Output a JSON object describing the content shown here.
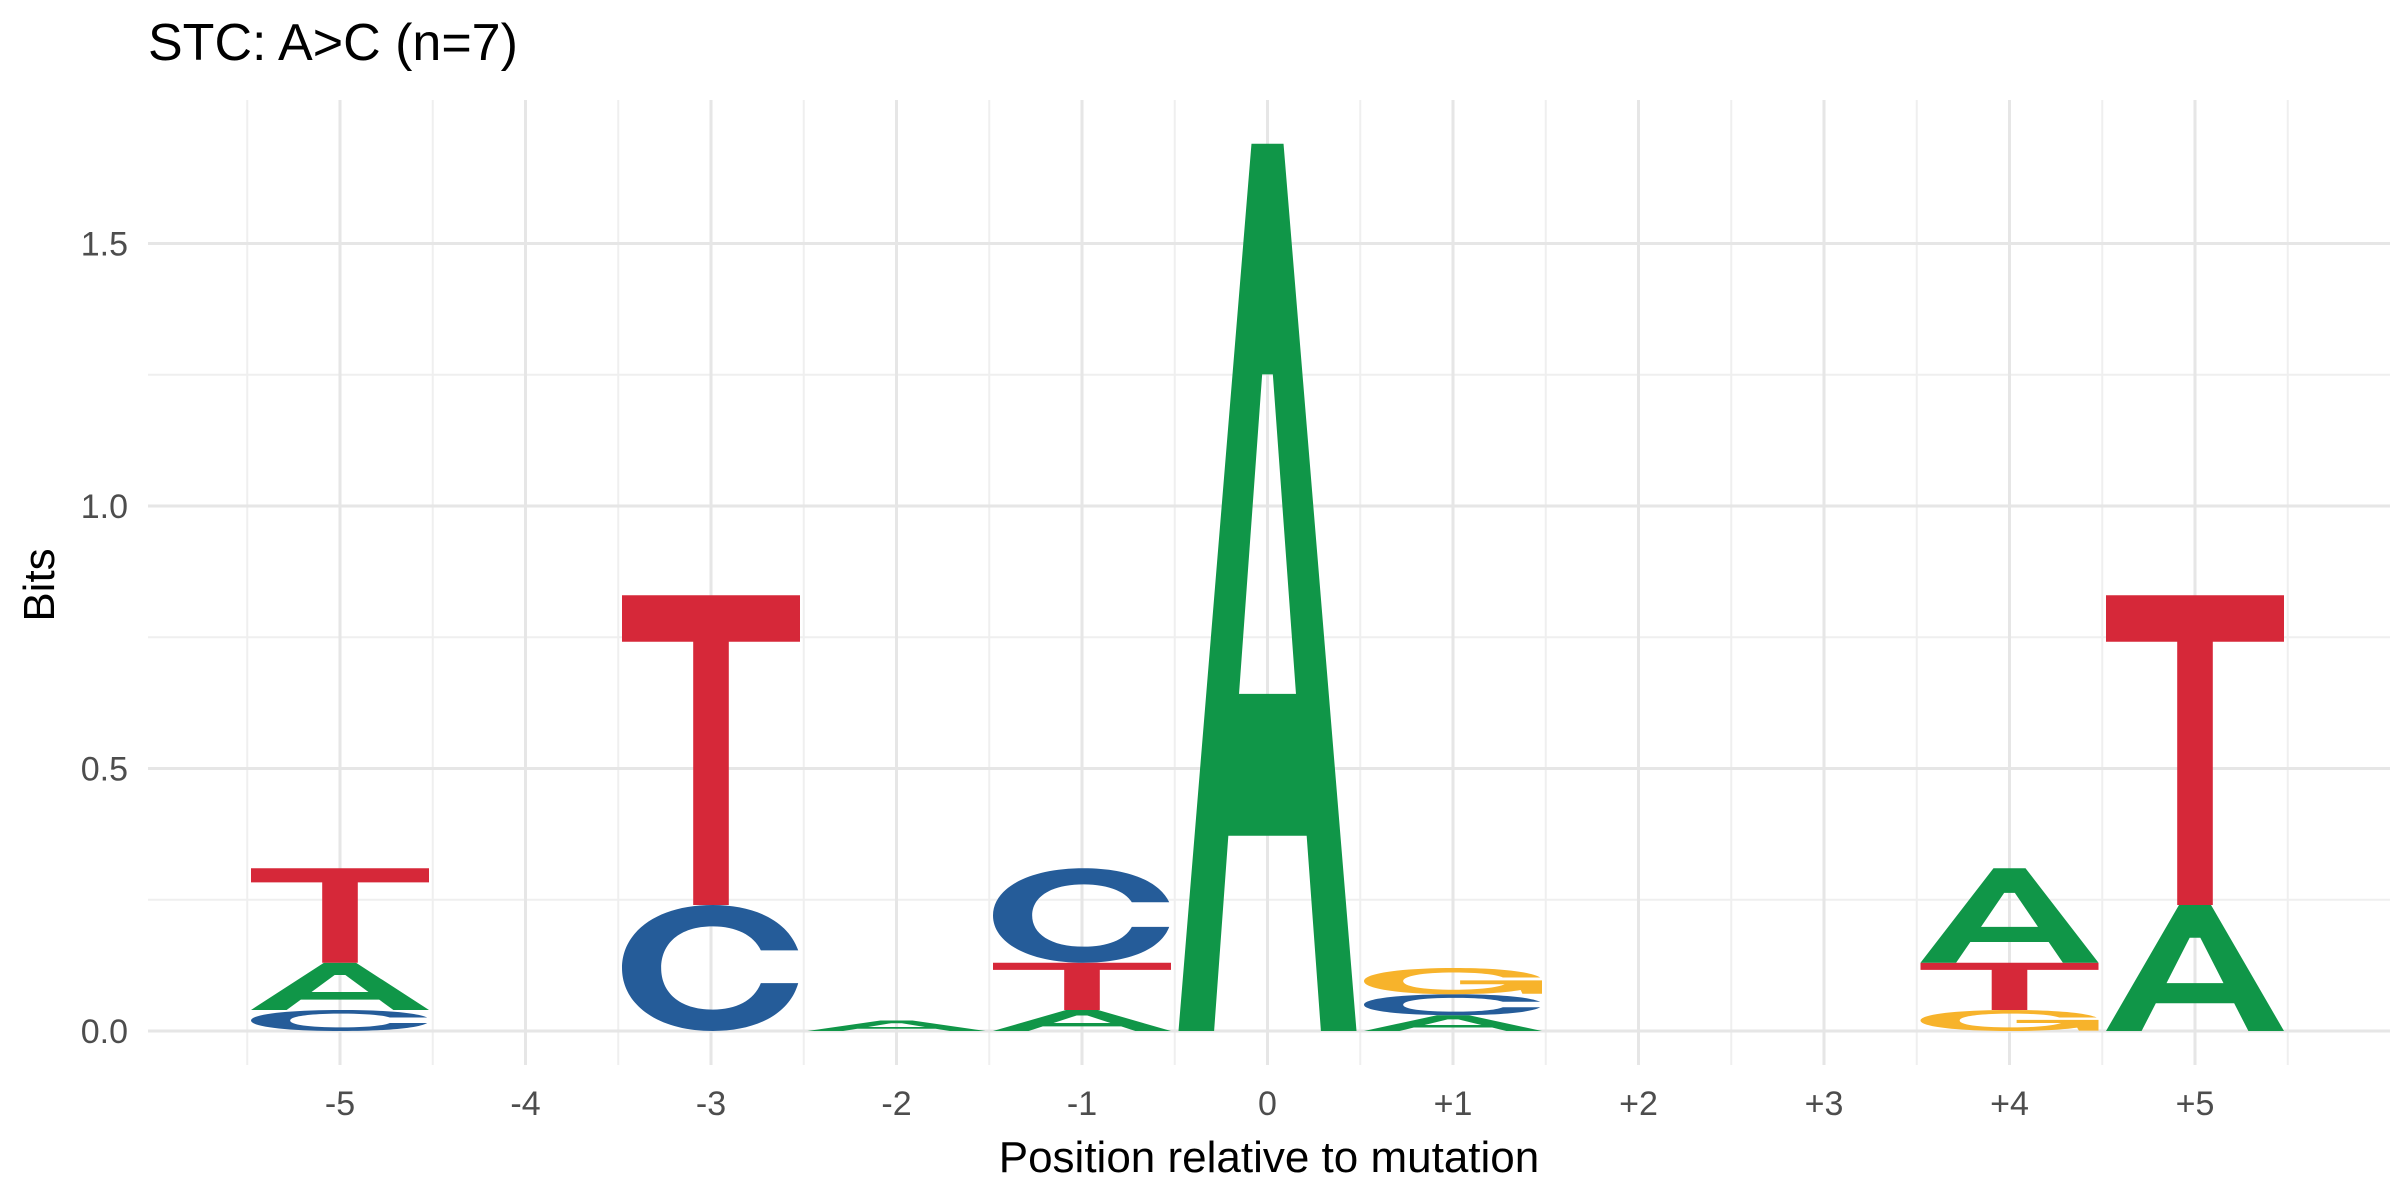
{
  "chart_data": {
    "type": "sequence-logo",
    "title": "STC: A>C (n=7)",
    "xlabel": "Position relative to mutation",
    "ylabel": "Bits",
    "ylim": [
      -0.08,
      1.75
    ],
    "yticks": [
      {
        "value": 0,
        "label": "0.0"
      },
      {
        "value": 0.5,
        "label": "0.5"
      },
      {
        "value": 1,
        "label": "1.0"
      },
      {
        "value": 1.5,
        "label": "1.5"
      }
    ],
    "grid": true,
    "colors": {
      "A": "#109648",
      "C": "#255C99",
      "G": "#F7B32B",
      "T": "#D62839"
    },
    "positions": [
      {
        "label": "-5",
        "letters": [
          {
            "base": "C",
            "bits": 0.04
          },
          {
            "base": "A",
            "bits": 0.09
          },
          {
            "base": "T",
            "bits": 0.18
          }
        ]
      },
      {
        "label": "-4",
        "letters": []
      },
      {
        "label": "-3",
        "letters": [
          {
            "base": "C",
            "bits": 0.24
          },
          {
            "base": "T",
            "bits": 0.59
          }
        ]
      },
      {
        "label": "-2",
        "letters": [
          {
            "base": "A",
            "bits": 0.02
          }
        ]
      },
      {
        "label": "-1",
        "letters": [
          {
            "base": "A",
            "bits": 0.04
          },
          {
            "base": "T",
            "bits": 0.09
          },
          {
            "base": "C",
            "bits": 0.18
          }
        ]
      },
      {
        "label": "0",
        "letters": [
          {
            "base": "A",
            "bits": 1.69
          }
        ]
      },
      {
        "label": "+1",
        "letters": [
          {
            "base": "A",
            "bits": 0.03
          },
          {
            "base": "C",
            "bits": 0.04
          },
          {
            "base": "G",
            "bits": 0.05
          }
        ]
      },
      {
        "label": "+2",
        "letters": []
      },
      {
        "label": "+3",
        "letters": []
      },
      {
        "label": "+4",
        "letters": [
          {
            "base": "G",
            "bits": 0.04
          },
          {
            "base": "T",
            "bits": 0.09
          },
          {
            "base": "A",
            "bits": 0.18
          }
        ]
      },
      {
        "label": "+5",
        "letters": [
          {
            "base": "A",
            "bits": 0.24
          },
          {
            "base": "T",
            "bits": 0.59
          }
        ]
      }
    ]
  }
}
